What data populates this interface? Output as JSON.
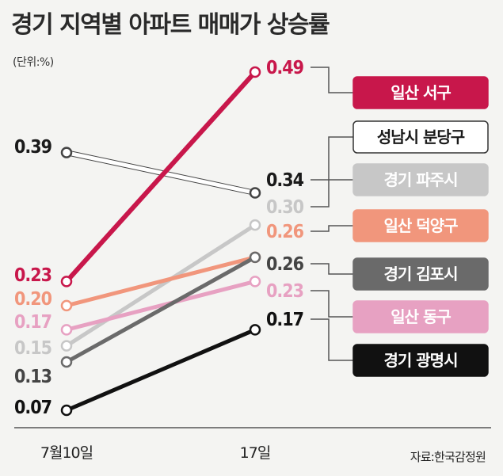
{
  "title": "경기 지역별 아파트 매매가 상승률",
  "unit": "(단위:%)",
  "source": "자료:한국감정원",
  "chart_data": {
    "type": "line",
    "categories": [
      "7월10일",
      "17일"
    ],
    "series": [
      {
        "name": "일산 서구",
        "values": [
          0.23,
          0.49
        ],
        "color": "#c8174b",
        "text_color": "#ffffff",
        "label_start": "0.23",
        "label_end": "0.49"
      },
      {
        "name": "성남시 분당구",
        "values": [
          0.39,
          0.34
        ],
        "color": "#ffffff",
        "text_color": "#1a1a1a",
        "label_start": "0.39",
        "label_end": "0.34"
      },
      {
        "name": "경기 파주시",
        "values": [
          0.15,
          0.3
        ],
        "color": "#c7c7c7",
        "text_color": "#ffffff",
        "label_start": "0.15",
        "label_end": "0.30"
      },
      {
        "name": "일산 덕양구",
        "values": [
          0.2,
          0.26
        ],
        "color": "#f1967c",
        "text_color": "#ffffff",
        "label_start": "0.20",
        "label_end": "0.26"
      },
      {
        "name": "경기 김포시",
        "values": [
          0.13,
          0.26
        ],
        "color": "#6a6a6a",
        "text_color": "#ffffff",
        "label_start": "0.13",
        "label_end": "0.26"
      },
      {
        "name": "일산 동구",
        "values": [
          0.17,
          0.23
        ],
        "color": "#e7a1c2",
        "text_color": "#ffffff",
        "label_start": "0.17",
        "label_end": "0.23"
      },
      {
        "name": "경기 광명시",
        "values": [
          0.07,
          0.17
        ],
        "color": "#111111",
        "text_color": "#ffffff",
        "label_start": "0.07",
        "label_end": "0.17"
      }
    ]
  }
}
